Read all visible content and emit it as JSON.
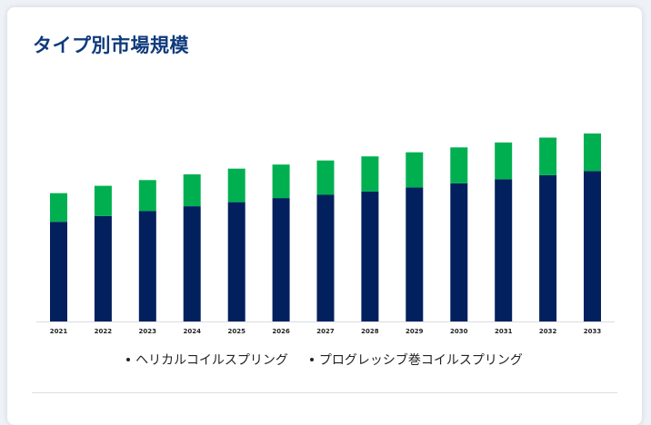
{
  "title": "タイプ別市場規模",
  "colors": {
    "helical": "#03205e",
    "progressive": "#00b050",
    "title": "#0f3a7c"
  },
  "legend": [
    {
      "label": "ヘリカルコイルスプリング"
    },
    {
      "label": "プログレッシブ巻コイルスプリング"
    }
  ],
  "chart_data": {
    "type": "bar",
    "stacked": true,
    "categories": [
      "2021",
      "2022",
      "2023",
      "2024",
      "2025",
      "2026",
      "2027",
      "2028",
      "2029",
      "2030",
      "2031",
      "2032",
      "2033"
    ],
    "series": [
      {
        "name": "ヘリカルコイルスプリング",
        "color": "#03205e",
        "values": [
          122,
          129,
          135,
          141,
          146,
          151,
          155,
          159,
          164,
          169,
          174,
          179,
          184
        ]
      },
      {
        "name": "プログレッシブ巻コイルスプリング",
        "color": "#00b050",
        "values": [
          35,
          37,
          38,
          39,
          41,
          41,
          42,
          43,
          43,
          44,
          45,
          46,
          46
        ]
      }
    ],
    "ylim": [
      0,
      240
    ],
    "yaxis_visible": false,
    "grid": false,
    "legend_position": "bottom"
  }
}
